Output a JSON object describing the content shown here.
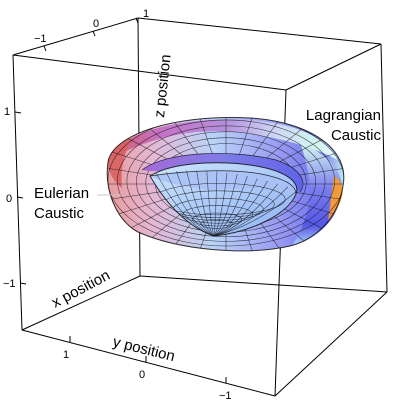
{
  "chart_data": {
    "type": "surface-3d",
    "title": "",
    "axes": {
      "x": {
        "label": "x position",
        "ticks": [
          "1",
          "0",
          "−1"
        ]
      },
      "y": {
        "label": "y position",
        "ticks": [
          "1",
          "0",
          "−1"
        ]
      },
      "z": {
        "label": "z position",
        "ticks": [
          "1",
          "0",
          "−1"
        ]
      },
      "top_front_ticks": [
        "−1",
        "0",
        "1"
      ]
    },
    "surfaces": [
      {
        "name": "Eulerian Caustic",
        "shape": "inner cusped surface"
      },
      {
        "name": "Lagrangian Caustic",
        "shape": "outer torus-like surface"
      }
    ],
    "annotations": {
      "lagrangian": [
        "Lagrangian",
        "Caustic"
      ],
      "eulerian": [
        "Eulerian",
        "Caustic"
      ]
    },
    "colors": {
      "red": "#d96060",
      "pink": "#e0b4d0",
      "blue": "#8f8ff4",
      "light_blue": "#b8d2fa",
      "cyan": "#d4fbf3",
      "orange": "#ef9a3d"
    }
  }
}
